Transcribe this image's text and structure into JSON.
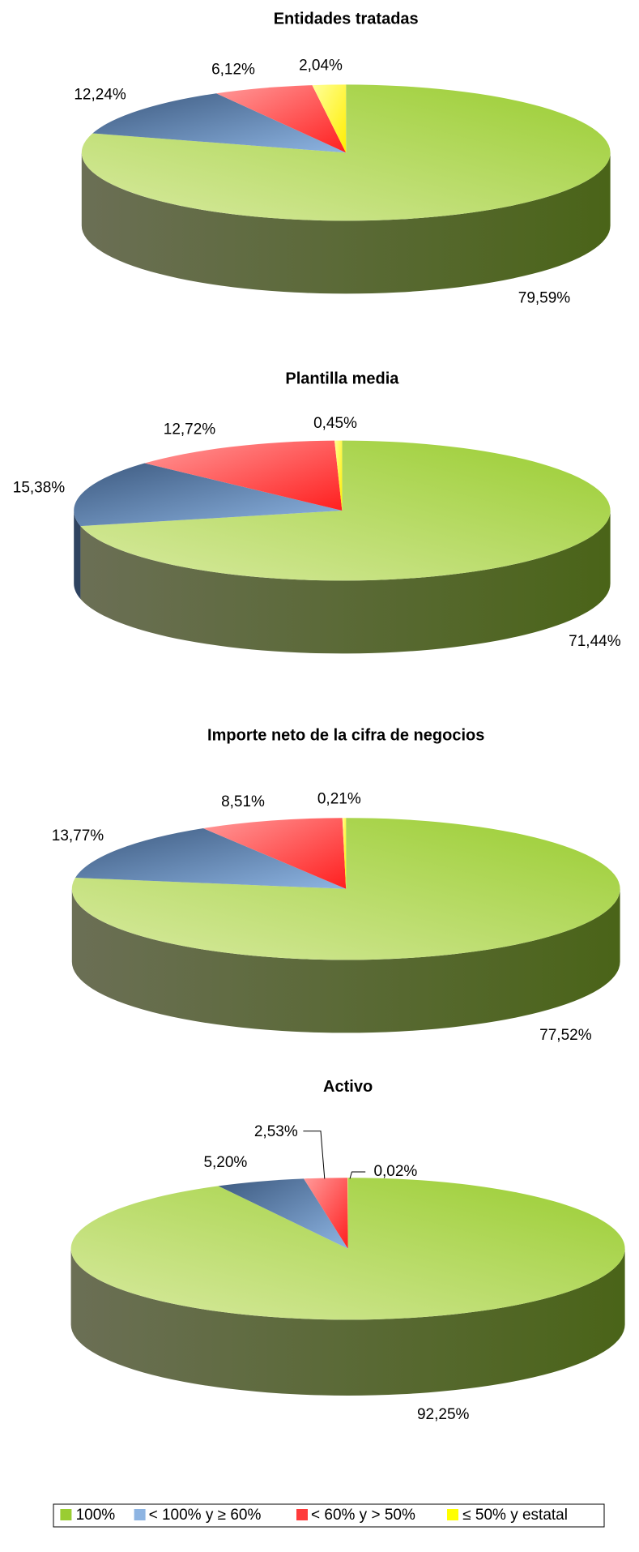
{
  "chart_data": [
    {
      "type": "pie",
      "title": "Entidades tratadas",
      "values": [
        79.59,
        12.24,
        6.12,
        2.04
      ],
      "value_labels": [
        "79,59%",
        "12,24%",
        "6,12%",
        "2,04%"
      ]
    },
    {
      "type": "pie",
      "title": "Plantilla media",
      "values": [
        71.44,
        15.38,
        12.72,
        0.45
      ],
      "value_labels": [
        "71,44%",
        "15,38%",
        "12,72%",
        "0,45%"
      ]
    },
    {
      "type": "pie",
      "title": "Importe neto de la cifra de negocios",
      "values": [
        77.52,
        13.77,
        8.51,
        0.21
      ],
      "value_labels": [
        "77,52%",
        "13,77%",
        "8,51%",
        "0,21%"
      ]
    },
    {
      "type": "pie",
      "title": "Activo",
      "values": [
        92.25,
        5.2,
        2.53,
        0.02
      ],
      "value_labels": [
        "92,25%",
        "5,20%",
        "2,53%",
        "0,02%"
      ]
    }
  ],
  "legend": {
    "labels": [
      "100%",
      "< 100% y ≥ 60%",
      "< 60% y > 50%",
      "≤ 50% y estatal"
    ],
    "colors": [
      "#9acd32",
      "#8db4e2",
      "#ff3b3b",
      "#ffff00"
    ]
  }
}
